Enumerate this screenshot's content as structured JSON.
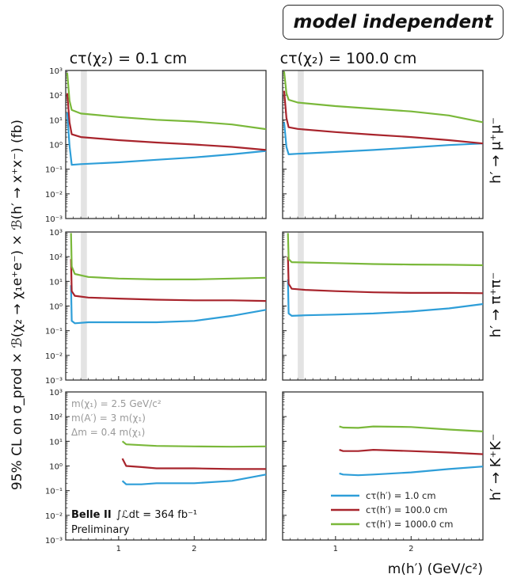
{
  "badge": "model independent",
  "chart_data": {
    "type": "line",
    "xlabel": "m(h′) (GeV/c²)",
    "ylabel": "95% CL on σ_prod × ℬ(χ₂ → χ₁e⁺e⁻) × ℬ(h′ → x⁺x⁻) (fb)",
    "xlim": [
      0.3,
      2.95
    ],
    "ylim": [
      0.001,
      1000
    ],
    "yscale": "log",
    "x_ticks": [
      "1",
      "2"
    ],
    "y_ticks": [
      "10⁻³",
      "10⁻²",
      "10⁻¹",
      "10⁰",
      "10¹",
      "10²",
      "10³"
    ],
    "columns": [
      "cτ(χ₂) = 0.1 cm",
      "cτ(χ₂) = 100.0 cm"
    ],
    "rows": [
      "h′ → μ⁺μ⁻",
      "h′ → π⁺π⁻",
      "h′ → K⁺K⁻"
    ],
    "legend": [
      "cτ(h′) = 1.0 cm",
      "cτ(h′) = 100.0 cm",
      "cτ(h′) = 1000.0 cm"
    ],
    "legend_position": "bottom-right",
    "colors": [
      "#2e9ed8",
      "#a8242c",
      "#7ab83a"
    ],
    "annotations": [
      "m(χ₁) = 2.5 GeV/c²",
      "m(A′) = 3 m(χ₁)",
      "Δm = 0.4 m(χ₁)"
    ],
    "experiment": "Belle II",
    "luminosity": "∫ℒdt = 364 fb⁻¹",
    "status": "Preliminary",
    "excluded_band_x": [
      0.5,
      0.58
    ],
    "panels": [
      {
        "row": 0,
        "col": 0,
        "band": true,
        "series": [
          {
            "x": [
              0.32,
              0.35,
              0.38,
              0.5,
              1.0,
              1.5,
              2.0,
              2.5,
              2.95
            ],
            "y": [
              20,
              0.9,
              0.15,
              0.16,
              0.19,
              0.24,
              0.3,
              0.4,
              0.55
            ]
          },
          {
            "x": [
              0.32,
              0.35,
              0.38,
              0.5,
              1.0,
              1.5,
              2.0,
              2.5,
              2.95
            ],
            "y": [
              120,
              8,
              2.6,
              2.0,
              1.5,
              1.2,
              1.0,
              0.8,
              0.6
            ]
          },
          {
            "x": [
              0.32,
              0.35,
              0.38,
              0.5,
              1.0,
              1.5,
              2.0,
              2.5,
              2.95
            ],
            "y": [
              800,
              60,
              25,
              18,
              13,
              10,
              8.5,
              6.5,
              4.2
            ]
          }
        ]
      },
      {
        "row": 0,
        "col": 1,
        "band": true,
        "series": [
          {
            "x": [
              0.32,
              0.35,
              0.38,
              0.5,
              1.0,
              1.5,
              2.0,
              2.5,
              2.95
            ],
            "y": [
              8,
              0.8,
              0.4,
              0.42,
              0.5,
              0.6,
              0.75,
              0.95,
              1.1
            ]
          },
          {
            "x": [
              0.32,
              0.35,
              0.38,
              0.5,
              1.0,
              1.5,
              2.0,
              2.5,
              2.95
            ],
            "y": [
              150,
              12,
              5,
              4.3,
              3.2,
              2.5,
              2.0,
              1.5,
              1.1
            ]
          },
          {
            "x": [
              0.32,
              0.35,
              0.38,
              0.5,
              1.0,
              1.5,
              2.0,
              2.5,
              2.95
            ],
            "y": [
              900,
              120,
              65,
              50,
              36,
              28,
              22,
              15,
              8
            ]
          }
        ]
      },
      {
        "row": 1,
        "col": 0,
        "band": true,
        "series": [
          {
            "x": [
              0.37,
              0.38,
              0.42,
              0.6,
              1.0,
              1.5,
              2.0,
              2.5,
              2.95
            ],
            "y": [
              7,
              0.25,
              0.2,
              0.22,
              0.22,
              0.22,
              0.25,
              0.4,
              0.7
            ]
          },
          {
            "x": [
              0.37,
              0.38,
              0.42,
              0.6,
              1.0,
              1.5,
              2.0,
              2.5,
              2.95
            ],
            "y": [
              80,
              4,
              2.6,
              2.2,
              2.0,
              1.8,
              1.7,
              1.7,
              1.6
            ]
          },
          {
            "x": [
              0.37,
              0.38,
              0.42,
              0.6,
              1.0,
              1.5,
              2.0,
              2.5,
              2.95
            ],
            "y": [
              900,
              40,
              20,
              15,
              13,
              12,
              12,
              13,
              14
            ]
          }
        ]
      },
      {
        "row": 1,
        "col": 1,
        "band": true,
        "series": [
          {
            "x": [
              0.37,
              0.38,
              0.42,
              0.6,
              1.0,
              1.5,
              2.0,
              2.5,
              2.95
            ],
            "y": [
              12,
              0.5,
              0.4,
              0.42,
              0.45,
              0.5,
              0.6,
              0.8,
              1.2
            ]
          },
          {
            "x": [
              0.37,
              0.38,
              0.42,
              0.6,
              1.0,
              1.5,
              2.0,
              2.5,
              2.95
            ],
            "y": [
              100,
              8,
              5,
              4.5,
              4.0,
              3.6,
              3.4,
              3.4,
              3.3
            ]
          },
          {
            "x": [
              0.37,
              0.38,
              0.42,
              0.6,
              1.0,
              1.5,
              2.0,
              2.5,
              2.95
            ],
            "y": [
              900,
              80,
              60,
              58,
              55,
              50,
              48,
              47,
              45
            ]
          }
        ]
      },
      {
        "row": 2,
        "col": 0,
        "band": false,
        "series": [
          {
            "x": [
              1.05,
              1.1,
              1.3,
              1.5,
              2.0,
              2.5,
              2.95
            ],
            "y": [
              0.25,
              0.18,
              0.18,
              0.2,
              0.2,
              0.25,
              0.45
            ]
          },
          {
            "x": [
              1.05,
              1.1,
              1.3,
              1.5,
              2.0,
              2.5,
              2.95
            ],
            "y": [
              2.0,
              1.0,
              0.9,
              0.8,
              0.8,
              0.75,
              0.75
            ]
          },
          {
            "x": [
              1.05,
              1.1,
              1.3,
              1.5,
              2.0,
              2.5,
              2.95
            ],
            "y": [
              10,
              7.5,
              7.0,
              6.5,
              6.2,
              6.0,
              6.2
            ]
          }
        ]
      },
      {
        "row": 2,
        "col": 1,
        "band": false,
        "series": [
          {
            "x": [
              1.05,
              1.1,
              1.3,
              1.5,
              2.0,
              2.5,
              2.95
            ],
            "y": [
              0.5,
              0.45,
              0.42,
              0.45,
              0.55,
              0.75,
              0.95
            ]
          },
          {
            "x": [
              1.05,
              1.1,
              1.3,
              1.5,
              2.0,
              2.5,
              2.95
            ],
            "y": [
              4.5,
              4.0,
              4.0,
              4.5,
              4.0,
              3.5,
              3.0
            ]
          },
          {
            "x": [
              1.05,
              1.1,
              1.3,
              1.5,
              2.0,
              2.5,
              2.95
            ],
            "y": [
              40,
              36,
              35,
              40,
              38,
              30,
              25
            ]
          }
        ]
      }
    ]
  }
}
